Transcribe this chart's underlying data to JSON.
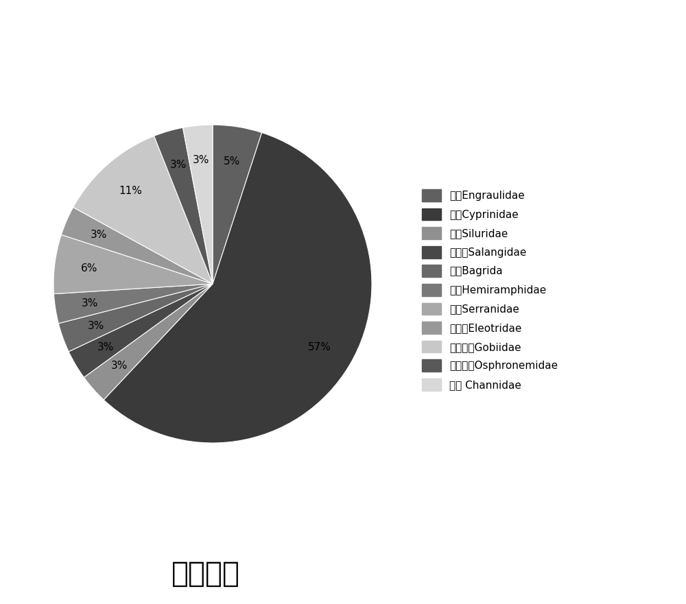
{
  "title": "科级水平",
  "title_fontsize": 30,
  "labels": [
    "鲲科Engraulidae",
    "鲤科Cyprinidae",
    "鲇科Siluridae",
    "銀鱼科Salangidae",
    "鲿科Bagrida",
    "鰵科Hemiramphidae",
    "鲈科Serranidae",
    "塘鹳科Eleotridae",
    "虲虎鱼科Gobiidae",
    "丝足鲈科Osphronemidae",
    "鰢科 Channidae"
  ],
  "values": [
    5,
    57,
    3,
    3,
    3,
    3,
    6,
    3,
    11,
    3,
    3
  ],
  "colors": [
    "#606060",
    "#3a3a3a",
    "#909090",
    "#484848",
    "#686868",
    "#787878",
    "#a8a8a8",
    "#989898",
    "#c8c8c8",
    "#585858",
    "#d8d8d8"
  ],
  "startangle": 90,
  "figsize": [
    10.0,
    8.81
  ],
  "dpi": 100,
  "legend_fontsize": 11,
  "autopct_fontsize": 11,
  "background_color": "#ffffff",
  "pctdistance": 0.78
}
